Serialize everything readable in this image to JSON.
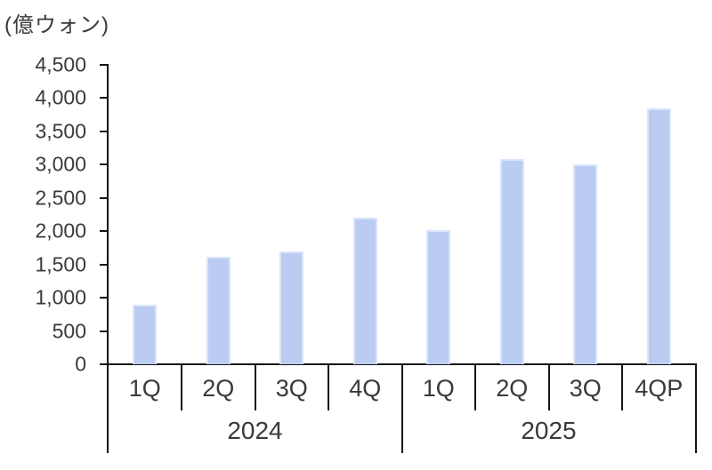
{
  "chart": {
    "unit_text": "(億ウォン)",
    "colors": {
      "bar_fill": "#BBCCF3",
      "bar_border": "#DAE4FA",
      "axis": "#141414",
      "text": "#3A3A3A"
    }
  },
  "chart_data": {
    "type": "bar",
    "title": "",
    "ylabel": "(億ウォン)",
    "xlabel": "",
    "categories": [
      "1Q",
      "2Q",
      "3Q",
      "4Q",
      "1Q",
      "2Q",
      "3Q",
      "4QP"
    ],
    "groups": [
      {
        "label": "2024",
        "span": 4
      },
      {
        "label": "2025",
        "span": 4
      }
    ],
    "values": [
      890,
      1620,
      1690,
      2200,
      2020,
      3080,
      3010,
      3840
    ],
    "ylim": [
      0,
      4500
    ],
    "ytick_step": 500,
    "yticks": [
      0,
      500,
      1000,
      1500,
      2000,
      2500,
      3000,
      3500,
      4000,
      4500
    ],
    "ytick_labels": [
      "0",
      "500",
      "1,000",
      "1,500",
      "2,000",
      "2,500",
      "3,000",
      "3,500",
      "4,000",
      "4,500"
    ],
    "grid": false,
    "legend": false
  }
}
